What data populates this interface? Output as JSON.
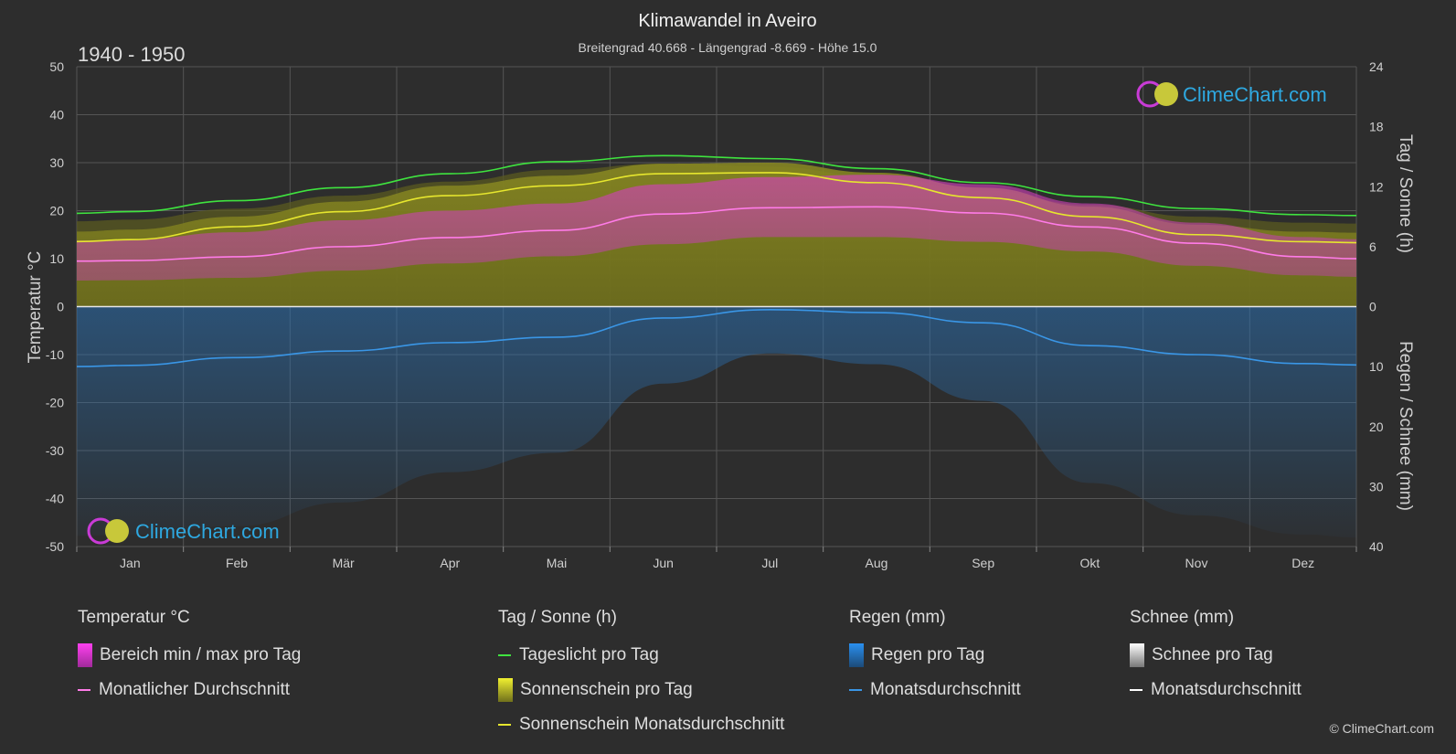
{
  "header": {
    "title": "Klimawandel in Aveiro",
    "subtitle": "Breitengrad 40.668 - Längengrad -8.669 - Höhe 15.0",
    "period": "1940 - 1950"
  },
  "logo": {
    "text": "ClimeChart.com"
  },
  "copyright": "© ClimeChart.com",
  "colors": {
    "background": "#2d2d2d",
    "daylight": "#3fe33f",
    "sunshine_avg": "#e6e62e",
    "sunshine_fill": "#8a8a22",
    "temp_range": "#d63fbf",
    "temp_avg": "#ff7be8",
    "rain": "#2a80c8",
    "rain_avg": "#3a96e6",
    "snow": "#ffffff",
    "logo": "#2ea8e0"
  },
  "chart_data": {
    "type": "line",
    "categories": [
      "Jan",
      "Feb",
      "Mär",
      "Apr",
      "Mai",
      "Jun",
      "Jul",
      "Aug",
      "Sep",
      "Okt",
      "Nov",
      "Dez"
    ],
    "left_axis": {
      "label": "Temperatur °C",
      "ylim": [
        -50,
        50
      ],
      "ticks": [
        "50",
        "40",
        "30",
        "20",
        "10",
        "0",
        "-10",
        "-20",
        "-30",
        "-40",
        "-50"
      ]
    },
    "right_axis_top": {
      "label": "Tag / Sonne (h)",
      "ylim": [
        0,
        24
      ],
      "ticks": [
        "24",
        "18",
        "12",
        "6",
        "0"
      ]
    },
    "right_axis_bottom": {
      "label": "Regen / Schnee (mm)",
      "ylim": [
        0,
        40
      ],
      "ticks": [
        "0",
        "10",
        "20",
        "30",
        "40"
      ]
    },
    "grid": true,
    "series": [
      {
        "name": "Tageslicht pro Tag",
        "axis": "hours",
        "values": [
          9.5,
          10.6,
          11.9,
          13.3,
          14.5,
          15.1,
          14.8,
          13.8,
          12.4,
          11.0,
          9.8,
          9.2
        ]
      },
      {
        "name": "Sonnenschein Monatsdurchschnitt",
        "axis": "hours",
        "values": [
          6.7,
          8.0,
          9.5,
          11.1,
          12.1,
          13.3,
          13.4,
          12.4,
          10.9,
          9.0,
          7.2,
          6.5
        ]
      },
      {
        "name": "Monatlicher Durchschnitt",
        "axis": "temperature",
        "values": [
          9.6,
          10.4,
          12.5,
          14.4,
          15.9,
          19.3,
          20.6,
          20.8,
          19.5,
          16.6,
          13.2,
          10.4
        ]
      },
      {
        "name": "Monatsdurchschnitt",
        "axis": "rain",
        "values": [
          9.8,
          8.5,
          7.4,
          6.0,
          5.1,
          1.9,
          0.5,
          1.0,
          2.7,
          6.5,
          8.0,
          9.5
        ]
      }
    ],
    "temp_range": {
      "min": [
        5.5,
        6.0,
        7.5,
        9.0,
        10.5,
        13.0,
        14.5,
        14.5,
        13.5,
        11.5,
        8.5,
        6.5
      ],
      "max": [
        14.0,
        15.5,
        18.0,
        20.0,
        21.5,
        25.5,
        27.0,
        27.5,
        25.5,
        21.5,
        17.5,
        14.5
      ]
    }
  },
  "legend": {
    "groups": [
      {
        "title": "Temperatur °C",
        "items": [
          {
            "label": "Bereich min / max pro Tag"
          },
          {
            "label": "Monatlicher Durchschnitt"
          }
        ]
      },
      {
        "title": "Tag / Sonne (h)",
        "items": [
          {
            "label": "Tageslicht pro Tag"
          },
          {
            "label": "Sonnenschein pro Tag"
          },
          {
            "label": "Sonnenschein Monatsdurchschnitt"
          }
        ]
      },
      {
        "title": "Regen (mm)",
        "items": [
          {
            "label": "Regen pro Tag"
          },
          {
            "label": "Monatsdurchschnitt"
          }
        ]
      },
      {
        "title": "Schnee (mm)",
        "items": [
          {
            "label": "Schnee pro Tag"
          },
          {
            "label": "Monatsdurchschnitt"
          }
        ]
      }
    ]
  }
}
